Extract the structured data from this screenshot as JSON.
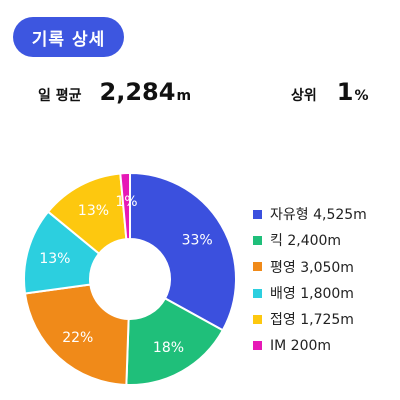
{
  "header": {
    "title": "기록 상세"
  },
  "stats": {
    "daily_avg_label": "일 평균",
    "daily_avg_value": "2,284",
    "daily_avg_unit": "m",
    "rank_label": "상위",
    "rank_value": "1",
    "rank_unit": "%"
  },
  "chart_data": {
    "type": "pie",
    "donut": true,
    "categories": [
      "자유형",
      "킥",
      "평영",
      "배영",
      "접영",
      "IM"
    ],
    "values": [
      4525,
      2400,
      3050,
      1800,
      1725,
      200
    ],
    "unit": "m",
    "percent_labels": [
      "33%",
      "18%",
      "22%",
      "13%",
      "13%",
      "1%"
    ],
    "legend_labels": [
      "자유형 4,525m",
      "킥 2,400m",
      "평영 3,050m",
      "배영 1,800m",
      "접영 1,725m",
      "IM 200m"
    ],
    "colors": [
      "#3b50de",
      "#1fbf7a",
      "#f08a19",
      "#2ccfdf",
      "#fdc80f",
      "#e619b6"
    ],
    "legend_position": "right"
  }
}
